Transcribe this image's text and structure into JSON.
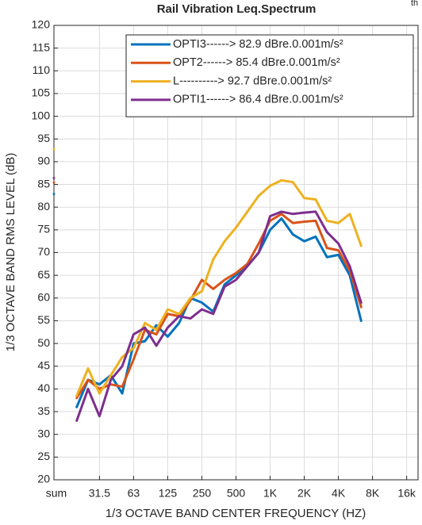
{
  "chart_data": {
    "type": "line",
    "title": "Rail Vibration Leq.Spectrum",
    "annotation": "th",
    "x_label": "1/3 OCTAVE BAND CENTER FREQUENCY (HZ)",
    "y_label": "1/3 OCTAVE BAND RMS LEVEL (dB)",
    "x": [
      0,
      1,
      2,
      3,
      4,
      5,
      6,
      7,
      8,
      9,
      10,
      11,
      12,
      13,
      14,
      15,
      16,
      17,
      18,
      19,
      20,
      21,
      22,
      23,
      24,
      25,
      26,
      27
    ],
    "series": [
      {
        "name": "OPTI3------> 82.9 dBre.0.001m/s²",
        "color": "#0072BD",
        "values": [
          82.9,
          null,
          36,
          42,
          41,
          43,
          39,
          50,
          50.5,
          54,
          51.5,
          54.5,
          60,
          59,
          57,
          63,
          65,
          67,
          70,
          75,
          77.5,
          74,
          72.5,
          73.5,
          69,
          69.5,
          65,
          55
        ]
      },
      {
        "name": "OPT2------> 85.4 dBre.0.001m/s²",
        "color": "#D95319",
        "values": [
          85.4,
          null,
          38,
          42,
          40,
          41,
          40.5,
          46.5,
          53,
          52,
          56.5,
          56,
          59.5,
          64,
          62,
          64,
          65.5,
          67.5,
          72,
          77,
          78.5,
          76.5,
          76.8,
          77,
          71,
          70.5,
          66,
          58
        ]
      },
      {
        "name": "L----------> 92.7 dBre.0.001m/s²",
        "color": "#EDB120",
        "values": [
          92.7,
          null,
          38.5,
          44.5,
          39,
          43,
          47,
          49,
          54.5,
          53,
          57.5,
          56.5,
          60,
          61.5,
          68.5,
          72.5,
          75.5,
          79,
          82.5,
          84.7,
          85.9,
          85.5,
          82,
          81.7,
          77,
          76.5,
          78.5,
          71.5
        ]
      },
      {
        "name": "OPTI1------> 86.4 dBre.0.001m/s²",
        "color": "#7E2F8E",
        "values": [
          86.4,
          null,
          33,
          40,
          34,
          42,
          45,
          52,
          53.5,
          49.5,
          53.5,
          56,
          55.5,
          57.5,
          56.5,
          62.5,
          64,
          67,
          70,
          78,
          79,
          78.5,
          78.8,
          79,
          74.5,
          72,
          67,
          59
        ]
      }
    ],
    "xlim": [
      0,
      32
    ],
    "xticks": [
      {
        "value": 0,
        "label": "sum"
      },
      4,
      7,
      10,
      13,
      16,
      19,
      22,
      25,
      28,
      31
    ],
    "xtick_labels": [
      "sum",
      "31.5",
      "63",
      "125",
      "250",
      "500",
      "1K",
      "2K",
      "4K",
      "8K",
      "16k"
    ],
    "ylim": [
      20,
      120
    ],
    "yticks": [
      20,
      25,
      30,
      35,
      40,
      45,
      50,
      55,
      60,
      65,
      70,
      75,
      80,
      85,
      90,
      95,
      100,
      105,
      110,
      115,
      120
    ],
    "grid": true,
    "legend": "upper right"
  }
}
